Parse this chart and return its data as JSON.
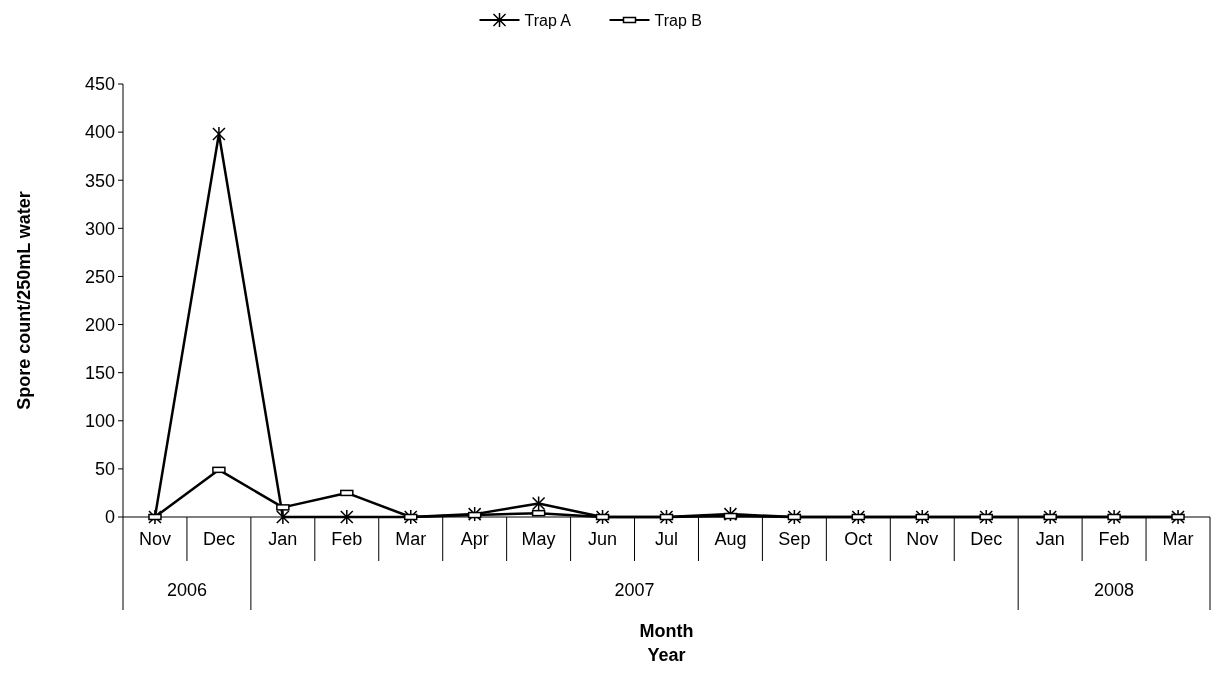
{
  "chart_data": {
    "type": "line",
    "xlabel": "Month\nYear",
    "ylabel": "Spore count/250mL water",
    "categories": [
      "Nov",
      "Dec",
      "Jan",
      "Feb",
      "Mar",
      "Apr",
      "May",
      "Jun",
      "Jul",
      "Aug",
      "Sep",
      "Oct",
      "Nov",
      "Dec",
      "Jan",
      "Feb",
      "Mar"
    ],
    "annotations": [
      "2006",
      "2007",
      "2008"
    ],
    "series": [
      {
        "name": "Trap A",
        "color": "#000000",
        "marker": "cross",
        "values": [
          0,
          398,
          0,
          0,
          0,
          3,
          14,
          0,
          0,
          3,
          0,
          0,
          0,
          0,
          0,
          0,
          0
        ]
      },
      {
        "name": "Trap B",
        "color": "#000000",
        "marker": "square",
        "values": [
          0,
          49,
          10,
          25,
          0,
          2,
          4,
          0,
          0,
          1,
          0,
          0,
          0,
          0,
          0,
          0,
          0
        ]
      }
    ],
    "ylim": [
      0,
      450
    ],
    "yticks": [
      0,
      50,
      100,
      150,
      200,
      250,
      300,
      350,
      400,
      450
    ],
    "legend": "top",
    "grid": false,
    "line_style": "solid"
  }
}
